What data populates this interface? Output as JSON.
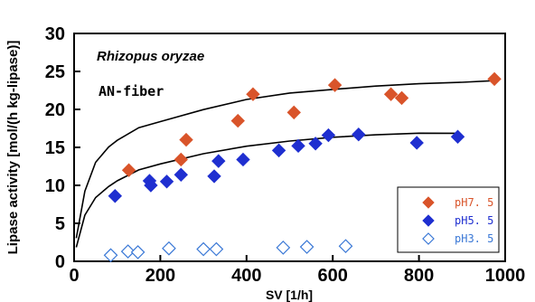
{
  "chart_data": {
    "type": "scatter",
    "xlabel": "SV [1/h]",
    "ylabel": "Lipase activity [mol/(h kg-lipase)]",
    "xlim": [
      0,
      1000
    ],
    "ylim": [
      0,
      30
    ],
    "x_ticks": [
      "0",
      "200",
      "400",
      "600",
      "800",
      "1000"
    ],
    "y_ticks": [
      "0",
      "5",
      "10",
      "15",
      "20",
      "25",
      "30"
    ],
    "grid": false,
    "legend_position": "bottom-right",
    "annotations": [
      "Rhizopus oryzae",
      "AN-fiber"
    ],
    "series": [
      {
        "name": "pH7. 5",
        "color": "#d9542a",
        "marker": "filled-diamond",
        "points": [
          [
            127,
            12
          ],
          [
            248,
            13.4
          ],
          [
            260,
            16
          ],
          [
            380,
            18.5
          ],
          [
            415,
            22
          ],
          [
            510,
            19.6
          ],
          [
            605,
            23.2
          ],
          [
            735,
            22
          ],
          [
            760,
            21.5
          ],
          [
            975,
            24
          ]
        ]
      },
      {
        "name": "pH5. 5",
        "color": "#1f2fd0",
        "marker": "filled-diamond",
        "points": [
          [
            95,
            8.6
          ],
          [
            175,
            10.6
          ],
          [
            178,
            10
          ],
          [
            215,
            10.5
          ],
          [
            248,
            11.4
          ],
          [
            325,
            11.2
          ],
          [
            335,
            13.2
          ],
          [
            392,
            13.4
          ],
          [
            475,
            14.6
          ],
          [
            520,
            15.2
          ],
          [
            560,
            15.5
          ],
          [
            590,
            16.6
          ],
          [
            660,
            16.7
          ],
          [
            795,
            15.6
          ],
          [
            890,
            16.4
          ]
        ]
      },
      {
        "name": "pH3. 5",
        "color": "#3a78d6",
        "marker": "open-diamond",
        "points": [
          [
            85,
            0.8
          ],
          [
            125,
            1.3
          ],
          [
            148,
            1.2
          ],
          [
            220,
            1.7
          ],
          [
            300,
            1.6
          ],
          [
            330,
            1.6
          ],
          [
            485,
            1.8
          ],
          [
            540,
            1.9
          ],
          [
            630,
            2
          ]
        ]
      }
    ],
    "fit_curves": [
      {
        "color": "#000000",
        "points": [
          [
            5,
            3.05
          ],
          [
            25,
            9.23
          ],
          [
            50,
            13.03
          ],
          [
            80,
            15.05
          ],
          [
            100,
            15.93
          ],
          [
            150,
            17.59
          ],
          [
            200,
            18.39
          ],
          [
            300,
            19.98
          ],
          [
            400,
            21.31
          ],
          [
            500,
            22.16
          ],
          [
            600,
            22.63
          ],
          [
            700,
            23.07
          ],
          [
            800,
            23.38
          ],
          [
            900,
            23.57
          ],
          [
            975,
            23.78
          ]
        ]
      },
      {
        "color": "#000000",
        "points": [
          [
            5,
            1.85
          ],
          [
            25,
            6.07
          ],
          [
            50,
            8.39
          ],
          [
            80,
            9.84
          ],
          [
            100,
            10.59
          ],
          [
            150,
            12.03
          ],
          [
            200,
            12.82
          ],
          [
            300,
            14.17
          ],
          [
            400,
            15.15
          ],
          [
            500,
            15.83
          ],
          [
            600,
            16.33
          ],
          [
            700,
            16.65
          ],
          [
            800,
            16.87
          ],
          [
            890,
            16.86
          ]
        ]
      }
    ]
  }
}
